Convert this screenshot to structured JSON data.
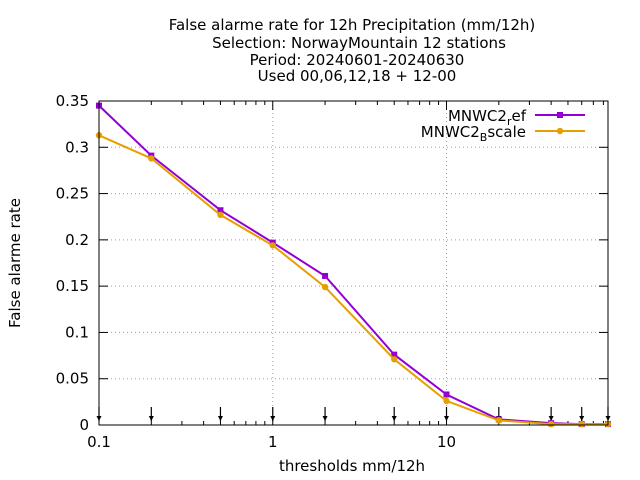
{
  "chart_data": {
    "type": "line",
    "title_lines": [
      "False alarme rate  for 12h Precipitation (mm/12h)",
      "Selection: NorwayMountain     12 stations",
      "Period: 20240601-20240630",
      "Used 00,06,12,18 + 12-00"
    ],
    "xlabel": "thresholds mm/12h",
    "ylabel": "False alarme rate",
    "xscale": "log",
    "xlim": [
      0.1,
      85
    ],
    "ylim": [
      0,
      0.35
    ],
    "xticks": [
      {
        "value": 0.1,
        "label": "0.1"
      },
      {
        "value": 1,
        "label": "1"
      },
      {
        "value": 10,
        "label": "10"
      }
    ],
    "yticks": [
      {
        "value": 0,
        "label": "0"
      },
      {
        "value": 0.05,
        "label": "0.05"
      },
      {
        "value": 0.1,
        "label": "0.1"
      },
      {
        "value": 0.15,
        "label": "0.15"
      },
      {
        "value": 0.2,
        "label": "0.2"
      },
      {
        "value": 0.25,
        "label": "0.25"
      },
      {
        "value": 0.3,
        "label": "0.3"
      },
      {
        "value": 0.35,
        "label": "0.35"
      }
    ],
    "grid": true,
    "legend_position": "top-right",
    "threshold_markers": [
      0.1,
      0.2,
      0.5,
      1,
      2,
      5,
      10,
      20,
      40,
      60,
      85
    ],
    "x": [
      0.1,
      0.2,
      0.5,
      1,
      2,
      5,
      10,
      20,
      40,
      60,
      85
    ],
    "series": [
      {
        "name_main": "MNWC2",
        "name_sub": "r",
        "name_tail": "ef",
        "color": "#9400d3",
        "marker": "square",
        "values": [
          0.345,
          0.291,
          0.232,
          0.197,
          0.161,
          0.076,
          0.033,
          0.006,
          0.002,
          0.001,
          0.001
        ]
      },
      {
        "name_main": "MNWC2",
        "name_sub": "B",
        "name_tail": "scale",
        "color": "#e69f00",
        "marker": "circle",
        "values": [
          0.313,
          0.288,
          0.227,
          0.194,
          0.149,
          0.071,
          0.026,
          0.005,
          0.001,
          0.001,
          0.001
        ]
      }
    ]
  }
}
